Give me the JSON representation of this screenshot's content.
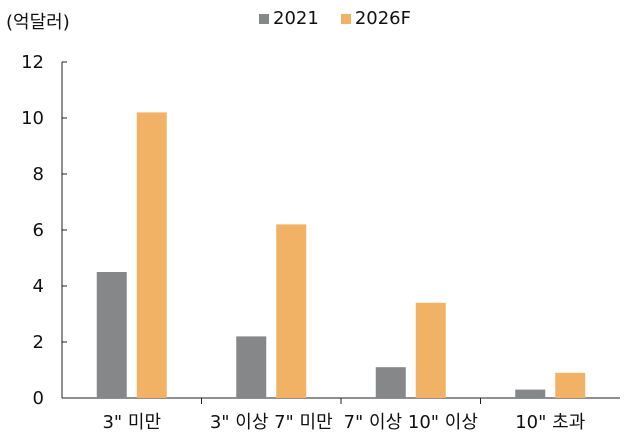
{
  "chart_data": {
    "type": "bar",
    "unit_label": "(억달러)",
    "categories": [
      "3\" 미만",
      "3\" 이상 7\" 미만",
      "7\" 이상 10\" 이상",
      "10\" 초과"
    ],
    "series": [
      {
        "name": "2021",
        "color": "#858788",
        "values": [
          4.5,
          2.2,
          1.1,
          0.3
        ]
      },
      {
        "name": "2026F",
        "color": "#f2b265",
        "values": [
          10.2,
          6.2,
          3.4,
          0.9
        ]
      }
    ],
    "ylim": [
      0,
      12
    ],
    "yticks": [
      0,
      2,
      4,
      6,
      8,
      10,
      12
    ],
    "grid": false,
    "legend_position": "top"
  }
}
